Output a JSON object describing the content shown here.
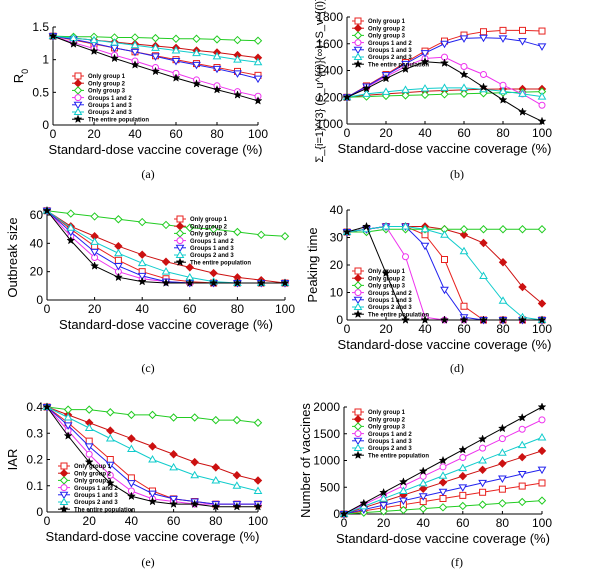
{
  "figure": {
    "captions": [
      "(a)",
      "(b)",
      "(c)",
      "(d)",
      "(e)",
      "(f)"
    ]
  },
  "styles": {
    "series_colors": [
      "#e8221f",
      "#cc1111",
      "#22cc22",
      "#ee33ee",
      "#2222ee",
      "#11cccc",
      "#000000"
    ],
    "series_markers": [
      "square",
      "diamond-filled",
      "diamond-open",
      "circle",
      "triangle-down",
      "triangle-up",
      "star"
    ]
  },
  "chart_data": [
    {
      "type": "line",
      "panel": "a",
      "xlabel": "Standard-dose vaccine coverage (%)",
      "ylabel": "R",
      "ylabel_sub": "0",
      "x": [
        0,
        10,
        20,
        30,
        40,
        50,
        60,
        70,
        80,
        90,
        100
      ],
      "xlim": [
        0,
        100
      ],
      "ylim": [
        0,
        1.5
      ],
      "xticks": [
        0,
        20,
        40,
        60,
        80,
        100
      ],
      "yticks": [
        0,
        0.5,
        1,
        1.5
      ],
      "ytick_labels": [
        "0",
        "0.5",
        "1",
        "1.5"
      ],
      "legend_position": "lower-left",
      "series": [
        {
          "name": "Only group 1",
          "values": [
            1.36,
            1.3,
            1.24,
            1.18,
            1.12,
            1.06,
            1.0,
            0.94,
            0.88,
            0.82,
            0.76
          ]
        },
        {
          "name": "Only group 2",
          "values": [
            1.36,
            1.33,
            1.3,
            1.27,
            1.24,
            1.21,
            1.18,
            1.14,
            1.11,
            1.07,
            1.03
          ]
        },
        {
          "name": "Only group 3",
          "values": [
            1.36,
            1.35,
            1.35,
            1.34,
            1.34,
            1.33,
            1.32,
            1.32,
            1.31,
            1.3,
            1.29
          ]
        },
        {
          "name": "Groups 1 and 2",
          "values": [
            1.36,
            1.26,
            1.17,
            1.07,
            0.98,
            0.88,
            0.79,
            0.69,
            0.6,
            0.51,
            0.44
          ]
        },
        {
          "name": "Groups 1 and 3",
          "values": [
            1.36,
            1.31,
            1.25,
            1.18,
            1.12,
            1.05,
            0.98,
            0.92,
            0.86,
            0.79,
            0.71
          ]
        },
        {
          "name": "Groups 2 and 3",
          "values": [
            1.36,
            1.33,
            1.3,
            1.26,
            1.22,
            1.18,
            1.14,
            1.1,
            1.05,
            1.0,
            0.96
          ]
        },
        {
          "name": "The entire population",
          "values": [
            1.36,
            1.24,
            1.13,
            1.02,
            0.92,
            0.82,
            0.72,
            0.63,
            0.54,
            0.46,
            0.37
          ]
        }
      ]
    },
    {
      "type": "line",
      "panel": "b",
      "xlabel": "Standard-dose vaccine coverage (%)",
      "ylabel": "Σ_{i=1}^{3} (S_u^{(i)}(∞)+S_v^{(i)}(∞))",
      "x": [
        0,
        10,
        20,
        30,
        40,
        50,
        60,
        70,
        80,
        90,
        100
      ],
      "xlim": [
        0,
        100
      ],
      "ylim": [
        1000,
        1800
      ],
      "xticks": [
        0,
        20,
        40,
        60,
        80,
        100
      ],
      "yticks": [
        1000,
        1200,
        1400,
        1600,
        1800
      ],
      "ytick_labels": [
        "1000",
        "1200",
        "1400",
        "1600",
        "1800"
      ],
      "legend_position": "top-left",
      "series": [
        {
          "name": "Only group 1",
          "values": [
            1200,
            1285,
            1370,
            1460,
            1545,
            1620,
            1665,
            1690,
            1700,
            1700,
            1695
          ]
        },
        {
          "name": "Only group 2",
          "values": [
            1200,
            1215,
            1225,
            1235,
            1245,
            1250,
            1255,
            1260,
            1262,
            1262,
            1262
          ]
        },
        {
          "name": "Only group 3",
          "values": [
            1200,
            1205,
            1210,
            1214,
            1218,
            1222,
            1226,
            1230,
            1234,
            1238,
            1242
          ]
        },
        {
          "name": "Groups 1 and 2",
          "values": [
            1200,
            1275,
            1355,
            1430,
            1490,
            1500,
            1430,
            1370,
            1290,
            1225,
            1140
          ]
        },
        {
          "name": "Groups 1 and 3",
          "values": [
            1200,
            1280,
            1365,
            1450,
            1530,
            1600,
            1640,
            1645,
            1640,
            1620,
            1580
          ]
        },
        {
          "name": "Groups 2 and 3",
          "values": [
            1200,
            1225,
            1240,
            1255,
            1265,
            1270,
            1270,
            1260,
            1245,
            1225,
            1205
          ]
        },
        {
          "name": "The entire population",
          "values": [
            1200,
            1265,
            1340,
            1410,
            1465,
            1455,
            1370,
            1275,
            1180,
            1090,
            1020
          ]
        }
      ]
    },
    {
      "type": "line",
      "panel": "c",
      "xlabel": "Standard-dose vaccine coverage (%)",
      "ylabel": "Outbreak size",
      "x": [
        0,
        10,
        20,
        30,
        40,
        50,
        60,
        70,
        80,
        90,
        100
      ],
      "xlim": [
        0,
        100
      ],
      "ylim": [
        0,
        60
      ],
      "xticks": [
        0,
        20,
        40,
        60,
        80,
        100
      ],
      "yticks": [
        0,
        20,
        40,
        60
      ],
      "ytick_labels": [
        "0",
        "20",
        "40",
        "60"
      ],
      "legend_position": "top-right",
      "series": [
        {
          "name": "Only group 1",
          "values": [
            63,
            50,
            38,
            28,
            20,
            15,
            13,
            12,
            12,
            12,
            12
          ]
        },
        {
          "name": "Only group 2",
          "values": [
            63,
            52,
            45,
            38,
            32,
            27,
            23,
            19,
            16,
            14,
            12
          ]
        },
        {
          "name": "Only group 3",
          "values": [
            63,
            61,
            59,
            57,
            55,
            53,
            51,
            50,
            48,
            46,
            45
          ]
        },
        {
          "name": "Groups 1 and 2",
          "values": [
            63,
            45,
            30,
            20,
            15,
            13,
            12,
            12,
            12,
            12,
            12
          ]
        },
        {
          "name": "Groups 1 and 3",
          "values": [
            63,
            48,
            34,
            24,
            17,
            13,
            12,
            12,
            12,
            12,
            12
          ]
        },
        {
          "name": "Groups 2 and 3",
          "values": [
            63,
            51,
            41,
            33,
            26,
            20,
            16,
            13,
            12,
            12,
            12
          ]
        },
        {
          "name": "The entire population",
          "values": [
            63,
            42,
            24,
            16,
            13,
            12,
            12,
            12,
            12,
            12,
            12
          ]
        }
      ]
    },
    {
      "type": "line",
      "panel": "d",
      "xlabel": "Standard-dose vaccine coverage (%)",
      "ylabel": "Peaking time",
      "x": [
        0,
        10,
        20,
        30,
        40,
        50,
        60,
        70,
        80,
        90,
        100
      ],
      "xlim": [
        0,
        100
      ],
      "ylim": [
        0,
        40
      ],
      "xticks": [
        0,
        20,
        40,
        60,
        80,
        100
      ],
      "yticks": [
        0,
        10,
        20,
        30,
        40
      ],
      "ytick_labels": [
        "0",
        "10",
        "20",
        "30",
        "40"
      ],
      "legend_position": "lower-left",
      "series": [
        {
          "name": "Only group 1",
          "values": [
            32,
            33,
            34,
            34,
            31,
            22,
            5,
            0,
            0,
            0,
            0
          ]
        },
        {
          "name": "Only group 2",
          "values": [
            32,
            33,
            34,
            34,
            34,
            33,
            31,
            28,
            21,
            12,
            6
          ]
        },
        {
          "name": "Only group 3",
          "values": [
            32,
            32,
            33,
            33,
            33,
            33,
            33,
            33,
            33,
            33,
            33
          ]
        },
        {
          "name": "Groups 1 and 2",
          "values": [
            32,
            33,
            34,
            23,
            1,
            0,
            0,
            0,
            0,
            0,
            0
          ]
        },
        {
          "name": "Groups 1 and 3",
          "values": [
            32,
            33,
            34,
            34,
            27,
            11,
            1,
            0,
            0,
            0,
            0
          ]
        },
        {
          "name": "Groups 2 and 3",
          "values": [
            32,
            33,
            34,
            34,
            33,
            31,
            25,
            16,
            7,
            1,
            0
          ]
        },
        {
          "name": "The entire population",
          "values": [
            32,
            34,
            17,
            0,
            0,
            0,
            0,
            0,
            0,
            0,
            0
          ]
        }
      ]
    },
    {
      "type": "line",
      "panel": "e",
      "xlabel": "Standard-dose vaccine coverage (%)",
      "ylabel": "IAR",
      "x": [
        0,
        10,
        20,
        30,
        40,
        50,
        60,
        70,
        80,
        90,
        100
      ],
      "xlim": [
        0,
        100
      ],
      "ylim": [
        0,
        0.4
      ],
      "xticks": [
        0,
        20,
        40,
        60,
        80,
        100
      ],
      "yticks": [
        0,
        0.1,
        0.2,
        0.3,
        0.4
      ],
      "ytick_labels": [
        "0",
        "0.1",
        "0.2",
        "0.3",
        "0.4"
      ],
      "legend_position": "lower-left",
      "series": [
        {
          "name": "Only group 1",
          "values": [
            0.4,
            0.34,
            0.27,
            0.2,
            0.13,
            0.08,
            0.05,
            0.04,
            0.03,
            0.03,
            0.03
          ]
        },
        {
          "name": "Only group 2",
          "values": [
            0.4,
            0.37,
            0.34,
            0.31,
            0.28,
            0.25,
            0.22,
            0.19,
            0.17,
            0.14,
            0.12
          ]
        },
        {
          "name": "Only group 3",
          "values": [
            0.4,
            0.39,
            0.39,
            0.38,
            0.37,
            0.37,
            0.36,
            0.36,
            0.35,
            0.35,
            0.34
          ]
        },
        {
          "name": "Groups 1 and 2",
          "values": [
            0.4,
            0.31,
            0.22,
            0.14,
            0.08,
            0.05,
            0.04,
            0.03,
            0.03,
            0.03,
            0.03
          ]
        },
        {
          "name": "Groups 1 and 3",
          "values": [
            0.4,
            0.33,
            0.25,
            0.18,
            0.11,
            0.07,
            0.05,
            0.04,
            0.03,
            0.03,
            0.03
          ]
        },
        {
          "name": "Groups 2 and 3",
          "values": [
            0.4,
            0.36,
            0.32,
            0.28,
            0.24,
            0.2,
            0.17,
            0.14,
            0.12,
            0.1,
            0.08
          ]
        },
        {
          "name": "The entire population",
          "values": [
            0.4,
            0.29,
            0.19,
            0.11,
            0.06,
            0.04,
            0.03,
            0.03,
            0.02,
            0.02,
            0.02
          ]
        }
      ]
    },
    {
      "type": "line",
      "panel": "f",
      "xlabel": "Standard-dose vaccine coverage (%)",
      "ylabel": "Number of vaccines",
      "x": [
        0,
        10,
        20,
        30,
        40,
        50,
        60,
        70,
        80,
        90,
        100
      ],
      "xlim": [
        0,
        100
      ],
      "ylim": [
        0,
        2000
      ],
      "xticks": [
        0,
        20,
        40,
        60,
        80,
        100
      ],
      "yticks": [
        0,
        500,
        1000,
        1500,
        2000
      ],
      "ytick_labels": [
        "0",
        "500",
        "1000",
        "1500",
        "2000"
      ],
      "legend_position": "top-left",
      "series": [
        {
          "name": "Only group 1",
          "values": [
            0,
            58,
            116,
            174,
            232,
            290,
            348,
            406,
            464,
            522,
            580
          ]
        },
        {
          "name": "Only group 2",
          "values": [
            0,
            118,
            236,
            354,
            472,
            590,
            708,
            826,
            944,
            1062,
            1180
          ]
        },
        {
          "name": "Only group 3",
          "values": [
            0,
            25,
            50,
            75,
            100,
            125,
            150,
            175,
            200,
            225,
            250
          ]
        },
        {
          "name": "Groups 1 and 2",
          "values": [
            0,
            176,
            352,
            528,
            704,
            880,
            1056,
            1232,
            1408,
            1584,
            1760
          ]
        },
        {
          "name": "Groups 1 and 3",
          "values": [
            0,
            83,
            166,
            249,
            332,
            415,
            498,
            581,
            664,
            747,
            830
          ]
        },
        {
          "name": "Groups 2 and 3",
          "values": [
            0,
            143,
            286,
            429,
            572,
            715,
            858,
            1001,
            1144,
            1287,
            1430
          ]
        },
        {
          "name": "The entire population",
          "values": [
            0,
            200,
            400,
            600,
            800,
            1000,
            1200,
            1400,
            1600,
            1800,
            2000
          ]
        }
      ]
    }
  ]
}
